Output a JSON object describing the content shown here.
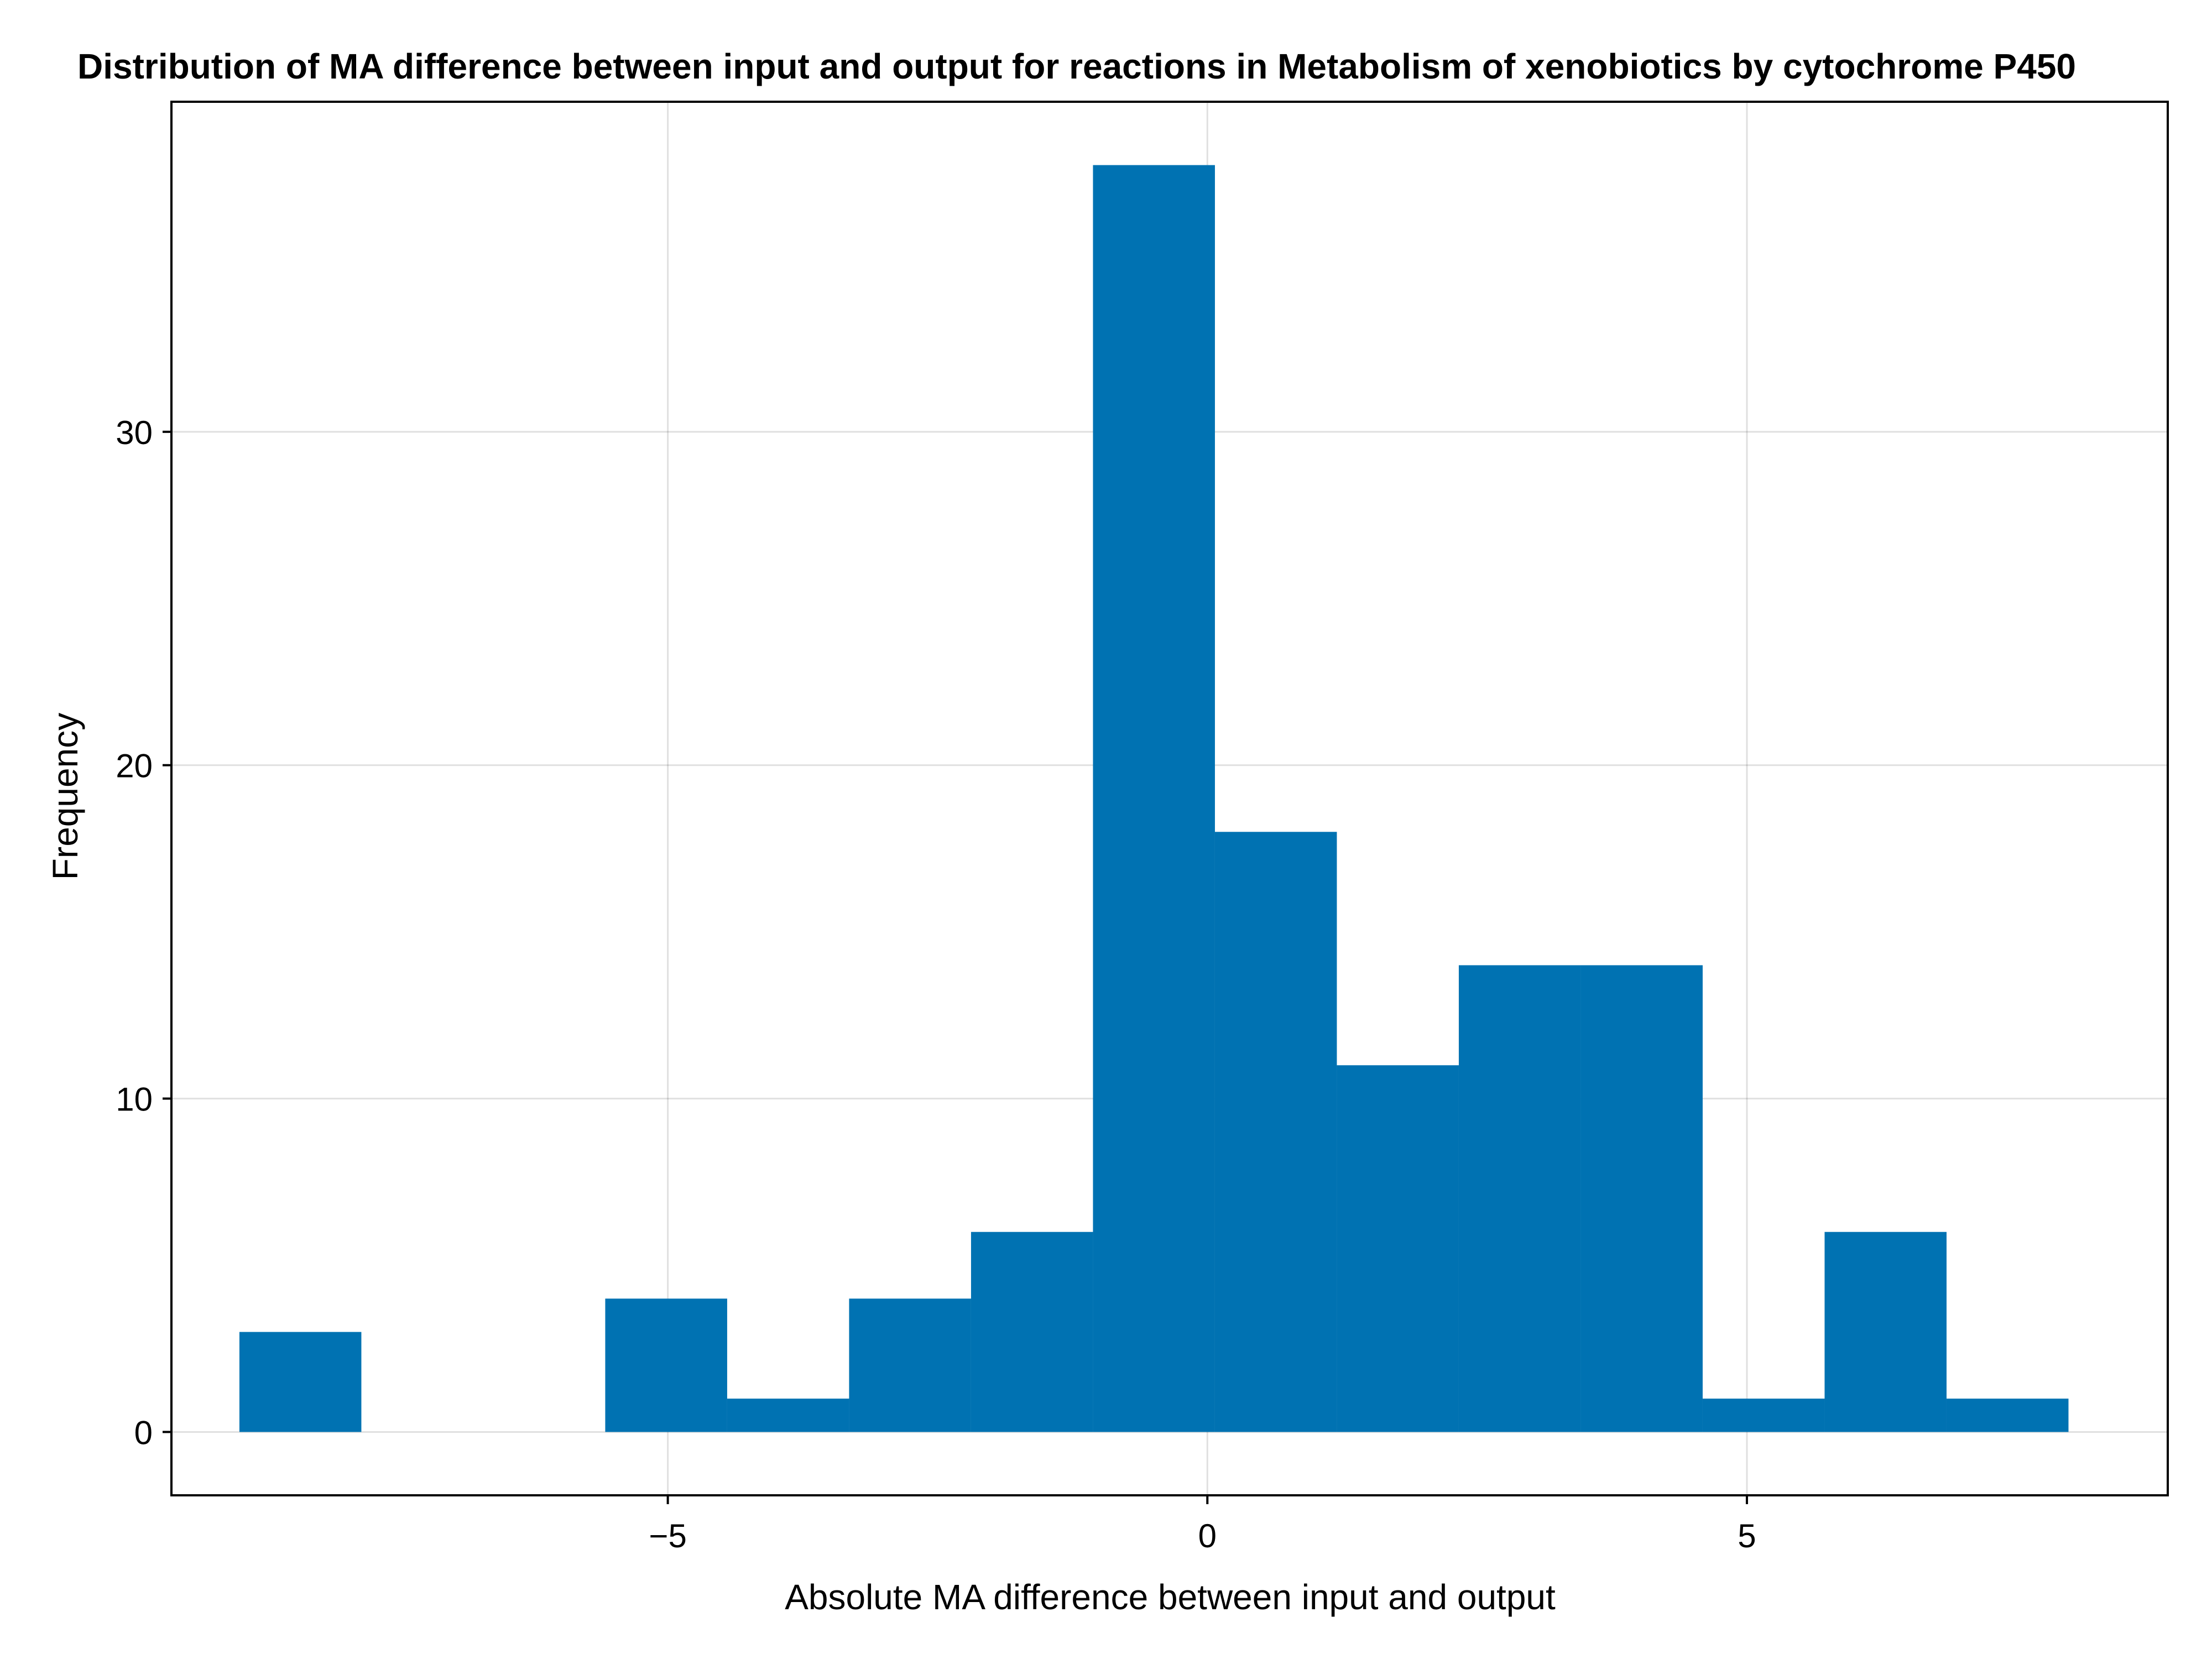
{
  "chart_data": {
    "type": "bar",
    "title": "Distribution of MA difference between input and output for reactions in Metabolism of xenobiotics by cytochrome P450",
    "xlabel": "Absolute MA difference between input and output",
    "ylabel": "Frequency",
    "xlim": [
      -9.6,
      8.9
    ],
    "ylim": [
      -1.9,
      39.9
    ],
    "xticks": [
      -5,
      0,
      5
    ],
    "xtick_labels": [
      "−5",
      "0",
      "5"
    ],
    "yticks": [
      0,
      10,
      20,
      30
    ],
    "ytick_labels": [
      "0",
      "10",
      "20",
      "30"
    ],
    "grid": true,
    "bar_color": "#0072b2",
    "bins": [
      {
        "x0": -8.97,
        "x1": -7.84,
        "count": 3
      },
      {
        "x0": -7.84,
        "x1": -6.71,
        "count": 0
      },
      {
        "x0": -6.71,
        "x1": -5.58,
        "count": 0
      },
      {
        "x0": -5.58,
        "x1": -4.45,
        "count": 4
      },
      {
        "x0": -4.45,
        "x1": -3.32,
        "count": 1
      },
      {
        "x0": -3.32,
        "x1": -2.19,
        "count": 4
      },
      {
        "x0": -2.19,
        "x1": -1.06,
        "count": 6
      },
      {
        "x0": -1.06,
        "x1": 0.07,
        "count": 38
      },
      {
        "x0": 0.07,
        "x1": 1.2,
        "count": 18
      },
      {
        "x0": 1.2,
        "x1": 2.33,
        "count": 11
      },
      {
        "x0": 2.33,
        "x1": 3.46,
        "count": 14
      },
      {
        "x0": 3.46,
        "x1": 4.59,
        "count": 14
      },
      {
        "x0": 4.59,
        "x1": 5.72,
        "count": 1
      },
      {
        "x0": 5.72,
        "x1": 6.85,
        "count": 6
      },
      {
        "x0": 6.85,
        "x1": 7.98,
        "count": 1
      }
    ]
  }
}
